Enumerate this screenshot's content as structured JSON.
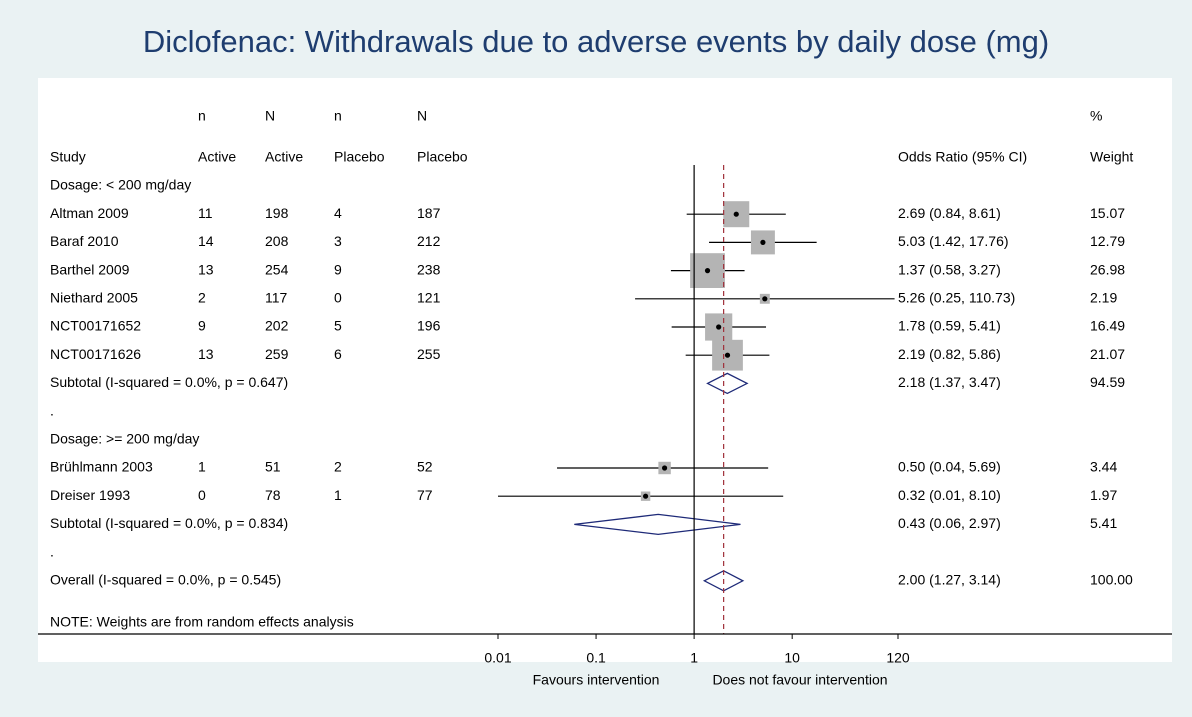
{
  "chart_data": {
    "type": "forest",
    "title": "Diclofenac: Withdrawals due to adverse events by daily dose (mg)",
    "columns": [
      [
        "",
        "Study"
      ],
      [
        "n",
        "Active"
      ],
      [
        "N",
        "Active"
      ],
      [
        "n",
        "Placebo"
      ],
      [
        "N",
        "Placebo"
      ],
      [
        "",
        "Odds Ratio (95% CI)"
      ],
      [
        "%",
        "Weight"
      ]
    ],
    "groups": [
      {
        "label": "Dosage: < 200 mg/day",
        "studies": [
          {
            "study": "Altman 2009",
            "n_active": 11,
            "N_active": 198,
            "n_placebo": 4,
            "N_placebo": 187,
            "or": 2.69,
            "lo": 0.84,
            "hi": 8.61,
            "or_label": "2.69 (0.84, 8.61)",
            "weight": 15.07
          },
          {
            "study": "Baraf 2010",
            "n_active": 14,
            "N_active": 208,
            "n_placebo": 3,
            "N_placebo": 212,
            "or": 5.03,
            "lo": 1.42,
            "hi": 17.76,
            "or_label": "5.03 (1.42, 17.76)",
            "weight": 12.79
          },
          {
            "study": "Barthel 2009",
            "n_active": 13,
            "N_active": 254,
            "n_placebo": 9,
            "N_placebo": 238,
            "or": 1.37,
            "lo": 0.58,
            "hi": 3.27,
            "or_label": "1.37 (0.58, 3.27)",
            "weight": 26.98
          },
          {
            "study": "Niethard 2005",
            "n_active": 2,
            "N_active": 117,
            "n_placebo": 0,
            "N_placebo": 121,
            "or": 5.26,
            "lo": 0.25,
            "hi": 110.73,
            "or_label": "5.26 (0.25, 110.73)",
            "weight": 2.19
          },
          {
            "study": "NCT00171652",
            "n_active": 9,
            "N_active": 202,
            "n_placebo": 5,
            "N_placebo": 196,
            "or": 1.78,
            "lo": 0.59,
            "hi": 5.41,
            "or_label": "1.78 (0.59, 5.41)",
            "weight": 16.49
          },
          {
            "study": "NCT00171626",
            "n_active": 13,
            "N_active": 259,
            "n_placebo": 6,
            "N_placebo": 255,
            "or": 2.19,
            "lo": 0.82,
            "hi": 5.86,
            "or_label": "2.19 (0.82, 5.86)",
            "weight": 21.07
          }
        ],
        "subtotal": {
          "label": "Subtotal  (I-squared = 0.0%, p = 0.647)",
          "or": 2.18,
          "lo": 1.37,
          "hi": 3.47,
          "or_label": "2.18 (1.37, 3.47)",
          "weight": 94.59
        },
        "separator": "."
      },
      {
        "label": "Dosage: >= 200 mg/day",
        "studies": [
          {
            "study": "Brühlmann 2003",
            "n_active": 1,
            "N_active": 51,
            "n_placebo": 2,
            "N_placebo": 52,
            "or": 0.5,
            "lo": 0.04,
            "hi": 5.69,
            "or_label": "0.50 (0.04, 5.69)",
            "weight": 3.44
          },
          {
            "study": "Dreiser 1993",
            "n_active": 0,
            "N_active": 78,
            "n_placebo": 1,
            "N_placebo": 77,
            "or": 0.32,
            "lo": 0.01,
            "hi": 8.1,
            "or_label": "0.32 (0.01, 8.10)",
            "weight": 1.97
          }
        ],
        "subtotal": {
          "label": "Subtotal  (I-squared = 0.0%, p = 0.834)",
          "or": 0.43,
          "lo": 0.06,
          "hi": 2.97,
          "or_label": "0.43 (0.06, 2.97)",
          "weight": 5.41
        },
        "separator": "."
      }
    ],
    "overall": {
      "label": "Overall  (I-squared = 0.0%, p = 0.545)",
      "or": 2.0,
      "lo": 1.27,
      "hi": 3.14,
      "or_label": "2.00 (1.27, 3.14)",
      "weight": 100,
      "weight_label": "100.00"
    },
    "note": "NOTE: Weights are from random effects analysis",
    "xlim": [
      0.01,
      120
    ],
    "xticks": [
      0.01,
      0.1,
      1,
      10,
      120
    ],
    "x_reference": 1,
    "xlabel_left": "Favours intervention",
    "xlabel_right": "Does not favour intervention",
    "log_x": true,
    "box_color": "#b4b4b4",
    "diamond_color": "#1e2a78",
    "dashed_color": "#a0303a"
  }
}
